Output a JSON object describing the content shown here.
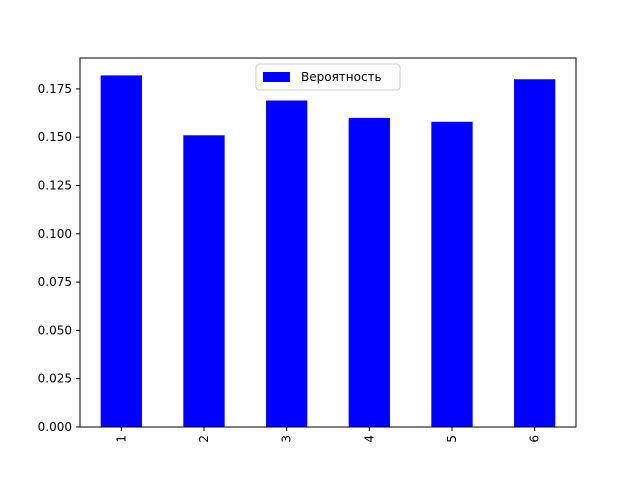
{
  "chart_data": {
    "type": "bar",
    "categories": [
      "1",
      "2",
      "3",
      "4",
      "5",
      "6"
    ],
    "series": [
      {
        "name": "Вероятность",
        "values": [
          0.182,
          0.151,
          0.169,
          0.16,
          0.158,
          0.18
        ],
        "color": "#0000ff"
      }
    ],
    "title": "",
    "xlabel": "",
    "ylabel": "",
    "ylim": [
      0,
      0.191
    ],
    "yticks": [
      0.0,
      0.025,
      0.05,
      0.075,
      0.1,
      0.125,
      0.15,
      0.175
    ],
    "ytick_labels": [
      "0.000",
      "0.025",
      "0.050",
      "0.075",
      "0.100",
      "0.125",
      "0.150",
      "0.175"
    ],
    "xtick_rotation": "vertical",
    "grid": false,
    "legend": {
      "position": "top-center",
      "entries": [
        "Вероятность"
      ]
    }
  }
}
